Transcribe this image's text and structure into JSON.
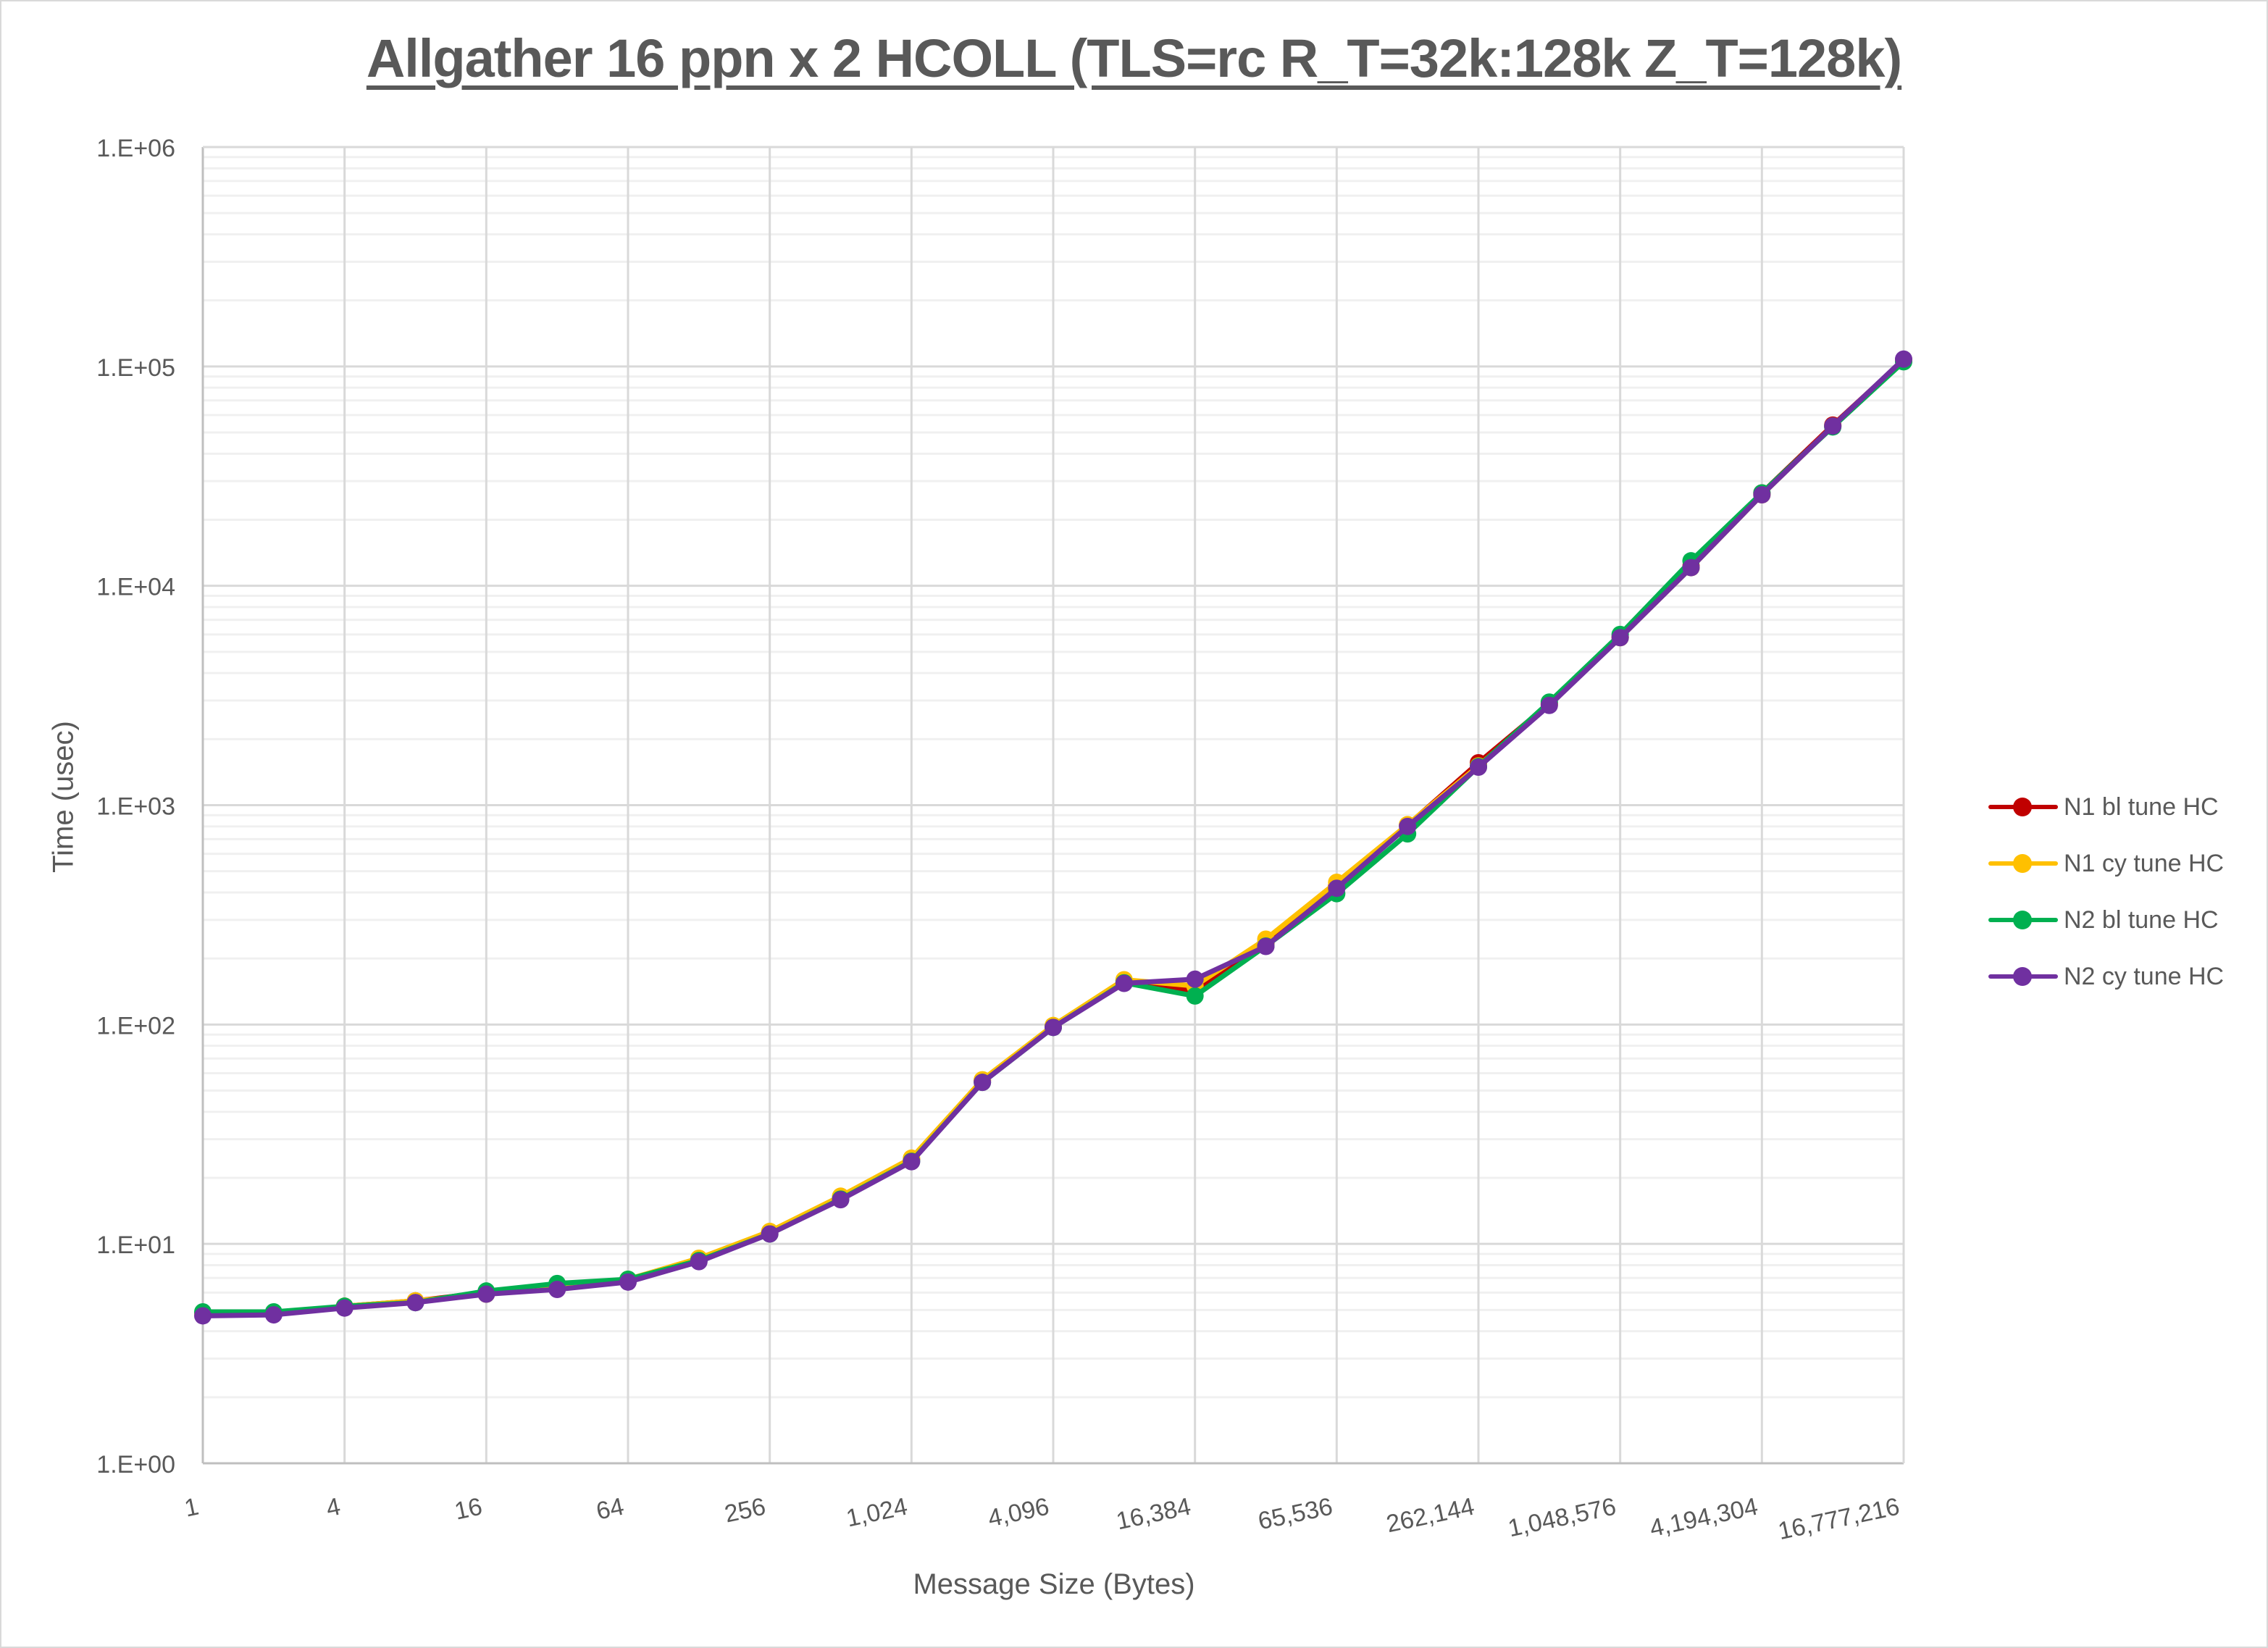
{
  "chart_data": {
    "type": "line",
    "title": "Allgather 16 ppn x 2 HCOLL (TLS=rc R_T=32k:128k Z_T=128k)",
    "xlabel": "Message Size (Bytes)",
    "ylabel": "Time (usec)",
    "xscale": "log2",
    "yscale": "log10",
    "ylim": [
      1,
      1000000
    ],
    "grid": true,
    "legend_position": "right",
    "x": [
      1,
      2,
      4,
      8,
      16,
      32,
      64,
      128,
      256,
      512,
      1024,
      2048,
      4096,
      8192,
      16384,
      32768,
      65536,
      131072,
      262144,
      524288,
      1048576,
      2097152,
      4194304,
      8388608,
      16777216
    ],
    "x_tick_labels": [
      "1",
      "4",
      "16",
      "64",
      "256",
      "1,024",
      "4,096",
      "16,384",
      "65,536",
      "262,144",
      "1,048,576",
      "4,194,304",
      "16,777,216"
    ],
    "y_tick_labels": [
      "1.E+00",
      "1.E+01",
      "1.E+02",
      "1.E+03",
      "1.E+04",
      "1.E+05",
      "1.E+06"
    ],
    "series": [
      {
        "name": "N1 bl tune HC",
        "color": "#c00000",
        "values": [
          4.8,
          4.8,
          5.2,
          5.5,
          6.0,
          6.3,
          6.8,
          8.5,
          11.3,
          16.3,
          24.3,
          55.5,
          98,
          158,
          142,
          235,
          430,
          810,
          1560,
          2900,
          5850,
          12300,
          26500,
          54000,
          107000
        ]
      },
      {
        "name": "N1 cy tune HC",
        "color": "#ffc000",
        "values": [
          4.8,
          4.85,
          5.2,
          5.5,
          5.9,
          6.3,
          6.9,
          8.6,
          11.4,
          16.5,
          24.6,
          56,
          99,
          160,
          150,
          245,
          445,
          815,
          1510,
          2880,
          5800,
          12100,
          26000,
          53500,
          106000
        ]
      },
      {
        "name": "N2 bl tune HC",
        "color": "#00b050",
        "values": [
          4.9,
          4.9,
          5.2,
          5.4,
          6.1,
          6.6,
          6.9,
          8.4,
          11.1,
          16.0,
          23.8,
          54.5,
          97,
          155,
          135,
          228,
          395,
          740,
          1500,
          2950,
          6000,
          13000,
          26500,
          53000,
          105000
        ]
      },
      {
        "name": "N2 cy tune HC",
        "color": "#7030a0",
        "values": [
          4.7,
          4.75,
          5.1,
          5.4,
          5.9,
          6.2,
          6.7,
          8.3,
          11.1,
          15.9,
          23.7,
          54.5,
          97,
          154,
          161,
          227,
          418,
          800,
          1490,
          2850,
          5800,
          12100,
          26000,
          53500,
          108000
        ]
      }
    ]
  },
  "legend": {
    "items": [
      {
        "label": "N1 bl tune HC",
        "color": "#c00000"
      },
      {
        "label": "N1 cy tune HC",
        "color": "#ffc000"
      },
      {
        "label": "N2 bl tune HC",
        "color": "#00b050"
      },
      {
        "label": "N2 cy tune HC",
        "color": "#7030a0"
      }
    ]
  }
}
